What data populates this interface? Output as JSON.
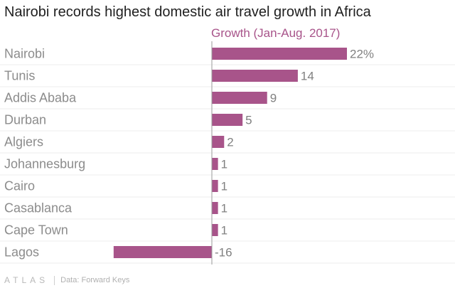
{
  "chart_data": {
    "type": "bar",
    "orientation": "horizontal",
    "title": "Nairobi records highest domestic air travel growth in Africa",
    "series_name": "Growth (Jan-Aug. 2017)",
    "categories": [
      "Nairobi",
      "Tunis",
      "Addis Ababa",
      "Durban",
      "Algiers",
      "Johannesburg",
      "Cairo",
      "Casablanca",
      "Cape Town",
      "Lagos"
    ],
    "values": [
      22,
      14,
      9,
      5,
      2,
      1,
      1,
      1,
      1,
      -16
    ],
    "value_labels": [
      "22%",
      "14",
      "9",
      "5",
      "2",
      "1",
      "1",
      "1",
      "1",
      "-16"
    ],
    "unit": "%",
    "xlim": [
      -16,
      22
    ],
    "bar_color": "#a8548a",
    "grid": true
  },
  "footer": {
    "logo": "ATLAS",
    "source": "Data: Forward Keys"
  }
}
